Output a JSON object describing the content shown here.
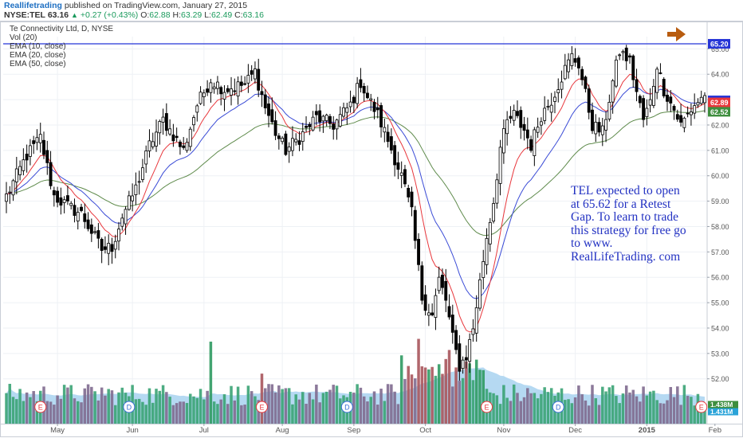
{
  "header": {
    "author": "Reallifetrading",
    "published_text": "published on TradingView.com, January 27, 2015",
    "symbol": "NYSE:TEL",
    "last": "63.16",
    "change": "+0.27 (+0.43%)",
    "ohlc": [
      {
        "label": "O:",
        "value": "62.88"
      },
      {
        "label": "H:",
        "value": "63.29"
      },
      {
        "label": "L:",
        "value": "62.49"
      },
      {
        "label": "C:",
        "value": "63.16"
      }
    ]
  },
  "legend": {
    "title": "Te Connectivity Ltd, D, NYSE",
    "items": [
      "Vol (20)",
      "EMA (10, close)",
      "EMA (20, close)",
      "EMA (50, close)"
    ]
  },
  "annotation": "TEL expected to open at 65.62 for a Retest Gap. To learn to trade this strategy for free go to www. RealLifeTrading. com",
  "colors": {
    "up": "#ffffff",
    "down": "#000000",
    "ema10": "#e8373c",
    "ema20": "#3a4bd6",
    "ema50": "#5f8b4c",
    "hline": "#2535d6",
    "volume_ma": "#a8d2f0",
    "arrow": "#b85c0f"
  },
  "chart_data": {
    "type": "candlestick",
    "price_axis": {
      "ylim": [
        51.3,
        65.45
      ],
      "ticks": [
        "65.00",
        "64.00",
        "63.00",
        "62.00",
        "61.00",
        "60.00",
        "59.00",
        "58.00",
        "57.00",
        "56.00",
        "55.00",
        "54.00",
        "53.00",
        "52.00"
      ],
      "tick_values": [
        65,
        64,
        63,
        62,
        61,
        60,
        59,
        58,
        57,
        56,
        55,
        54,
        53,
        52
      ]
    },
    "time_axis": {
      "labels": [
        {
          "text": "May",
          "index": 15
        },
        {
          "text": "Jun",
          "index": 37
        },
        {
          "text": "Jul",
          "index": 58
        },
        {
          "text": "Aug",
          "index": 81
        },
        {
          "text": "Sep",
          "index": 102
        },
        {
          "text": "Oct",
          "index": 123
        },
        {
          "text": "Nov",
          "index": 146
        },
        {
          "text": "Dec",
          "index": 167
        },
        {
          "text": "2015",
          "index": 188
        },
        {
          "text": "Feb",
          "index": 208
        }
      ],
      "bar_count": 206
    },
    "horizontal_line": {
      "value": 65.2,
      "label": "65.20"
    },
    "price_tags": [
      {
        "label": "65.20",
        "value": 65.2,
        "color": "#2535d6"
      },
      {
        "label": "62.97",
        "value": 62.97,
        "color": "#2535d6"
      },
      {
        "label": "62.89",
        "value": 62.89,
        "color": "#e8373c"
      },
      {
        "label": "62.52",
        "value": 62.52,
        "color": "#3e8e3e"
      }
    ],
    "volume_tags": [
      {
        "label": "1.438M",
        "color": "#3e8e3e"
      },
      {
        "label": "1.431M",
        "color": "#2aa3d8"
      }
    ],
    "event_markers": [
      {
        "text": "E",
        "index": 10,
        "color": "#e8373c"
      },
      {
        "text": "D",
        "index": 36,
        "color": "#3a6fd6"
      },
      {
        "text": "E",
        "index": 75,
        "color": "#e8373c"
      },
      {
        "text": "D",
        "index": 100,
        "color": "#3a6fd6"
      },
      {
        "text": "E",
        "index": 141,
        "color": "#e8373c"
      },
      {
        "text": "D",
        "index": 162,
        "color": "#3a6fd6"
      },
      {
        "text": "E",
        "index": 204,
        "color": "#e8373c"
      }
    ],
    "anchors": [
      [
        0,
        59.2
      ],
      [
        6,
        60.8
      ],
      [
        10,
        61.5
      ],
      [
        14,
        59.2
      ],
      [
        18,
        58.8
      ],
      [
        22,
        58.5
      ],
      [
        28,
        57.1
      ],
      [
        31,
        57.2
      ],
      [
        34,
        58.4
      ],
      [
        38,
        59.5
      ],
      [
        42,
        61.2
      ],
      [
        46,
        62.2
      ],
      [
        52,
        61.0
      ],
      [
        56,
        62.8
      ],
      [
        60,
        63.8
      ],
      [
        64,
        63.4
      ],
      [
        70,
        63.6
      ],
      [
        73,
        64.1
      ],
      [
        76,
        62.7
      ],
      [
        79,
        61.7
      ],
      [
        82,
        61.0
      ],
      [
        86,
        61.5
      ],
      [
        91,
        62.3
      ],
      [
        96,
        62.0
      ],
      [
        101,
        62.8
      ],
      [
        104,
        63.7
      ],
      [
        106,
        63.1
      ],
      [
        109,
        62.4
      ],
      [
        112,
        61.4
      ],
      [
        116,
        60.0
      ],
      [
        119,
        58.5
      ],
      [
        122,
        55.2
      ],
      [
        125,
        54.5
      ],
      [
        127,
        55.9
      ],
      [
        129,
        55.1
      ],
      [
        131,
        53.6
      ],
      [
        133,
        52.5
      ],
      [
        135,
        52.9
      ],
      [
        137,
        54.0
      ],
      [
        139,
        55.8
      ],
      [
        141,
        57.6
      ],
      [
        143,
        59.0
      ],
      [
        145,
        61.1
      ],
      [
        147,
        62.1
      ],
      [
        149,
        62.4
      ],
      [
        152,
        61.8
      ],
      [
        154,
        61.2
      ],
      [
        157,
        62.4
      ],
      [
        160,
        63.0
      ],
      [
        162,
        63.6
      ],
      [
        164,
        64.2
      ],
      [
        166,
        64.7
      ],
      [
        168,
        64.4
      ],
      [
        170,
        63.2
      ],
      [
        172,
        62.0
      ],
      [
        175,
        61.7
      ],
      [
        178,
        63.7
      ],
      [
        180,
        64.9
      ],
      [
        183,
        64.5
      ],
      [
        185,
        63.3
      ],
      [
        187,
        62.2
      ],
      [
        189,
        62.9
      ],
      [
        191,
        64.4
      ],
      [
        193,
        63.4
      ],
      [
        196,
        62.6
      ],
      [
        198,
        62.0
      ],
      [
        200,
        62.4
      ],
      [
        202,
        62.8
      ],
      [
        205,
        63.16
      ]
    ],
    "volume_ylim": [
      0,
      6.3
    ],
    "volume_unit": "M"
  }
}
